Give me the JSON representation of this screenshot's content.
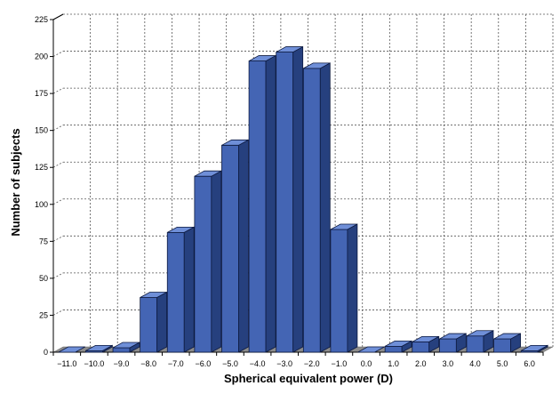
{
  "chart_data": {
    "type": "bar",
    "style": "3d-columns",
    "xlabel": "Spherical equivalent power (D)",
    "ylabel": "Number of subjects",
    "ylim": [
      0,
      225
    ],
    "yticks": [
      "0",
      "25",
      "50",
      "75",
      "100",
      "125",
      "150",
      "175",
      "200",
      "225"
    ],
    "categories": [
      "−11.0",
      "−10.0",
      "−9.0",
      "−8.0",
      "−7.0",
      "−6.0",
      "−5.0",
      "−4.0",
      "−3.0",
      "−2.0",
      "−1.0",
      "0.0",
      "1.0",
      "2.0",
      "3.0",
      "4.0",
      "5.0",
      "6.0"
    ],
    "values": [
      0,
      1,
      3,
      37,
      81,
      119,
      140,
      197,
      203,
      192,
      83,
      0,
      4,
      7,
      9,
      11,
      9,
      1
    ],
    "grid": true,
    "legend": "none",
    "colors": {
      "bar_front": "#4465b4",
      "bar_side": "#26407e",
      "bar_top": "#6f8fd8",
      "bar_edge": "#0d1a40",
      "floor": "#8c8c8c",
      "grid": "#555555"
    }
  }
}
